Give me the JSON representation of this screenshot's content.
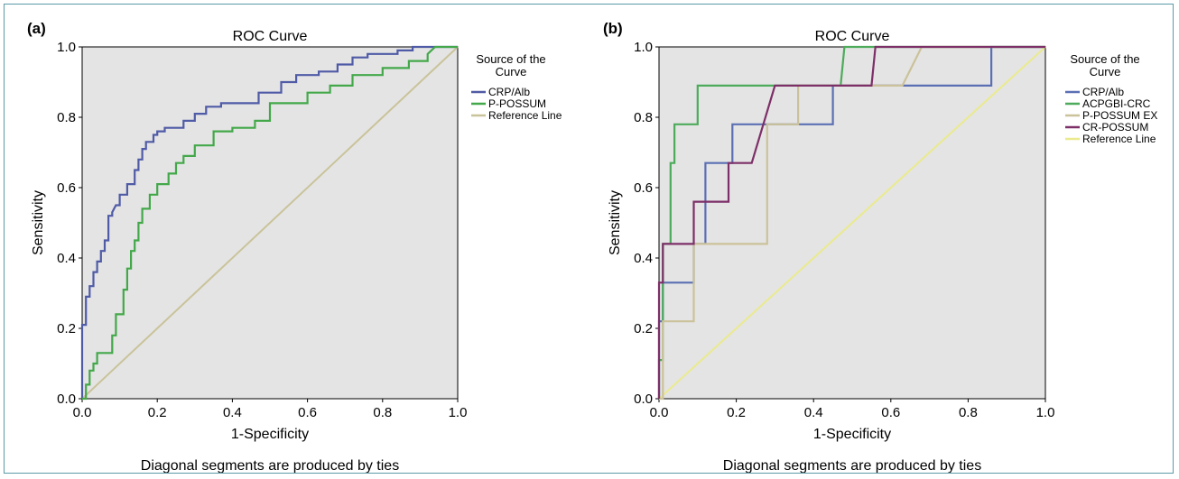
{
  "chart_data": [
    {
      "type": "line",
      "panel_label": "(a)",
      "title": "ROC Curve",
      "xlabel": "1-Specificity",
      "ylabel": "Sensitivity",
      "note": "Diagonal segments are produced by ties",
      "legend_title": "Source of the Curve",
      "legend_position": "right",
      "xlim": [
        0.0,
        1.0
      ],
      "ylim": [
        0.0,
        1.0
      ],
      "xticks": [
        "0.0",
        "0.2",
        "0.4",
        "0.6",
        "0.8",
        "1.0"
      ],
      "yticks": [
        "0.0",
        "0.2",
        "0.4",
        "0.6",
        "0.8",
        "1.0"
      ],
      "background": "#e4e4e4",
      "series": [
        {
          "name": "CRP/Alb",
          "color": "#4f5ba6",
          "x": [
            0.0,
            0.0,
            0.01,
            0.01,
            0.02,
            0.02,
            0.03,
            0.03,
            0.04,
            0.04,
            0.05,
            0.05,
            0.06,
            0.06,
            0.07,
            0.07,
            0.08,
            0.08,
            0.09,
            0.1,
            0.1,
            0.12,
            0.12,
            0.14,
            0.14,
            0.15,
            0.15,
            0.16,
            0.16,
            0.17,
            0.17,
            0.19,
            0.19,
            0.2,
            0.2,
            0.22,
            0.22,
            0.27,
            0.27,
            0.3,
            0.3,
            0.33,
            0.33,
            0.37,
            0.37,
            0.47,
            0.47,
            0.53,
            0.53,
            0.57,
            0.57,
            0.63,
            0.63,
            0.68,
            0.68,
            0.72,
            0.72,
            0.76,
            0.76,
            0.84,
            0.84,
            0.88,
            0.88,
            0.92,
            0.92,
            0.96,
            1.0
          ],
          "y": [
            0.0,
            0.21,
            0.21,
            0.29,
            0.29,
            0.32,
            0.32,
            0.36,
            0.36,
            0.39,
            0.39,
            0.42,
            0.42,
            0.45,
            0.45,
            0.52,
            0.52,
            0.53,
            0.55,
            0.55,
            0.58,
            0.58,
            0.61,
            0.61,
            0.65,
            0.65,
            0.68,
            0.68,
            0.71,
            0.71,
            0.73,
            0.73,
            0.75,
            0.75,
            0.76,
            0.76,
            0.77,
            0.77,
            0.79,
            0.79,
            0.81,
            0.81,
            0.83,
            0.83,
            0.84,
            0.84,
            0.87,
            0.87,
            0.9,
            0.9,
            0.92,
            0.92,
            0.93,
            0.93,
            0.95,
            0.95,
            0.97,
            0.97,
            0.98,
            0.98,
            0.99,
            0.99,
            1.0,
            1.0,
            1.0,
            1.0,
            1.0
          ]
        },
        {
          "name": "P-POSSUM",
          "color": "#43a84a",
          "x": [
            0.0,
            0.01,
            0.01,
            0.02,
            0.02,
            0.03,
            0.03,
            0.04,
            0.04,
            0.05,
            0.05,
            0.08,
            0.08,
            0.09,
            0.09,
            0.11,
            0.11,
            0.12,
            0.12,
            0.13,
            0.13,
            0.14,
            0.14,
            0.15,
            0.15,
            0.16,
            0.16,
            0.18,
            0.18,
            0.2,
            0.2,
            0.23,
            0.23,
            0.25,
            0.25,
            0.27,
            0.27,
            0.3,
            0.3,
            0.35,
            0.35,
            0.4,
            0.4,
            0.46,
            0.46,
            0.5,
            0.5,
            0.6,
            0.6,
            0.66,
            0.66,
            0.72,
            0.72,
            0.8,
            0.8,
            0.87,
            0.87,
            0.92,
            0.92,
            0.94,
            1.0
          ],
          "y": [
            0.0,
            0.0,
            0.04,
            0.04,
            0.08,
            0.08,
            0.1,
            0.1,
            0.13,
            0.13,
            0.13,
            0.13,
            0.18,
            0.18,
            0.24,
            0.24,
            0.31,
            0.31,
            0.37,
            0.37,
            0.42,
            0.42,
            0.45,
            0.45,
            0.5,
            0.5,
            0.54,
            0.54,
            0.58,
            0.58,
            0.61,
            0.61,
            0.64,
            0.64,
            0.67,
            0.67,
            0.69,
            0.69,
            0.72,
            0.72,
            0.76,
            0.76,
            0.77,
            0.77,
            0.79,
            0.79,
            0.84,
            0.84,
            0.87,
            0.87,
            0.89,
            0.89,
            0.92,
            0.92,
            0.94,
            0.94,
            0.96,
            0.96,
            0.98,
            1.0,
            1.0
          ]
        },
        {
          "name": "Reference Line",
          "color": "#c9c39a",
          "x": [
            0.0,
            1.0
          ],
          "y": [
            0.0,
            1.0
          ]
        }
      ]
    },
    {
      "type": "line",
      "panel_label": "(b)",
      "title": "ROC Curve",
      "xlabel": "1-Specificity",
      "ylabel": "Sensitivity",
      "note": "Diagonal segments are produced by ties",
      "legend_title": "Source of the Curve",
      "legend_position": "right",
      "xlim": [
        0.0,
        1.0
      ],
      "ylim": [
        0.0,
        1.0
      ],
      "xticks": [
        "0.0",
        "0.2",
        "0.4",
        "0.6",
        "0.8",
        "1.0"
      ],
      "yticks": [
        "0.0",
        "0.2",
        "0.4",
        "0.6",
        "0.8",
        "1.0"
      ],
      "background": "#e4e4e4",
      "series": [
        {
          "name": "CRP/Alb",
          "color": "#5b6fb3",
          "x": [
            0.0,
            0.0,
            0.01,
            0.01,
            0.03,
            0.03,
            0.09,
            0.09,
            0.12,
            0.12,
            0.19,
            0.19,
            0.23,
            0.23,
            0.36,
            0.36,
            0.45,
            0.45,
            0.62,
            0.62,
            0.86,
            0.86,
            1.0
          ],
          "y": [
            0.0,
            0.22,
            0.22,
            0.33,
            0.33,
            0.33,
            0.33,
            0.44,
            0.44,
            0.67,
            0.67,
            0.78,
            0.78,
            0.78,
            0.78,
            0.78,
            0.78,
            0.89,
            0.89,
            0.89,
            0.89,
            1.0,
            1.0
          ]
        },
        {
          "name": "ACPGBI-CRC",
          "color": "#4dab5b",
          "x": [
            0.0,
            0.0,
            0.01,
            0.01,
            0.02,
            0.02,
            0.03,
            0.03,
            0.04,
            0.04,
            0.07,
            0.07,
            0.1,
            0.1,
            0.15,
            0.15,
            0.47,
            0.48,
            1.0
          ],
          "y": [
            0.0,
            0.11,
            0.11,
            0.44,
            0.44,
            0.44,
            0.44,
            0.67,
            0.67,
            0.78,
            0.78,
            0.78,
            0.78,
            0.89,
            0.89,
            0.89,
            0.89,
            1.0,
            1.0
          ]
        },
        {
          "name": "P-POSSUM EX",
          "color": "#cbc29a",
          "x": [
            0.0,
            0.01,
            0.01,
            0.03,
            0.03,
            0.09,
            0.09,
            0.19,
            0.19,
            0.25,
            0.25,
            0.28,
            0.28,
            0.36,
            0.36,
            0.42,
            0.42,
            0.63,
            0.63,
            0.68,
            1.0
          ],
          "y": [
            0.0,
            0.0,
            0.22,
            0.22,
            0.22,
            0.22,
            0.44,
            0.44,
            0.44,
            0.44,
            0.44,
            0.44,
            0.78,
            0.78,
            0.89,
            0.89,
            0.89,
            0.89,
            0.89,
            1.0,
            1.0
          ]
        },
        {
          "name": "CR-POSSUM",
          "color": "#7d2f68",
          "x": [
            0.0,
            0.0,
            0.01,
            0.01,
            0.03,
            0.03,
            0.09,
            0.09,
            0.18,
            0.18,
            0.24,
            0.24,
            0.3,
            0.3,
            0.45,
            0.45,
            0.52,
            0.52,
            0.55,
            0.56,
            1.0
          ],
          "y": [
            0.0,
            0.33,
            0.33,
            0.44,
            0.44,
            0.44,
            0.44,
            0.56,
            0.56,
            0.67,
            0.67,
            0.67,
            0.89,
            0.89,
            0.89,
            0.89,
            0.89,
            0.89,
            0.89,
            1.0,
            1.0
          ]
        },
        {
          "name": "Reference Line",
          "color": "#eaea8e",
          "x": [
            0.0,
            1.0
          ],
          "y": [
            0.0,
            1.0
          ]
        }
      ]
    }
  ]
}
